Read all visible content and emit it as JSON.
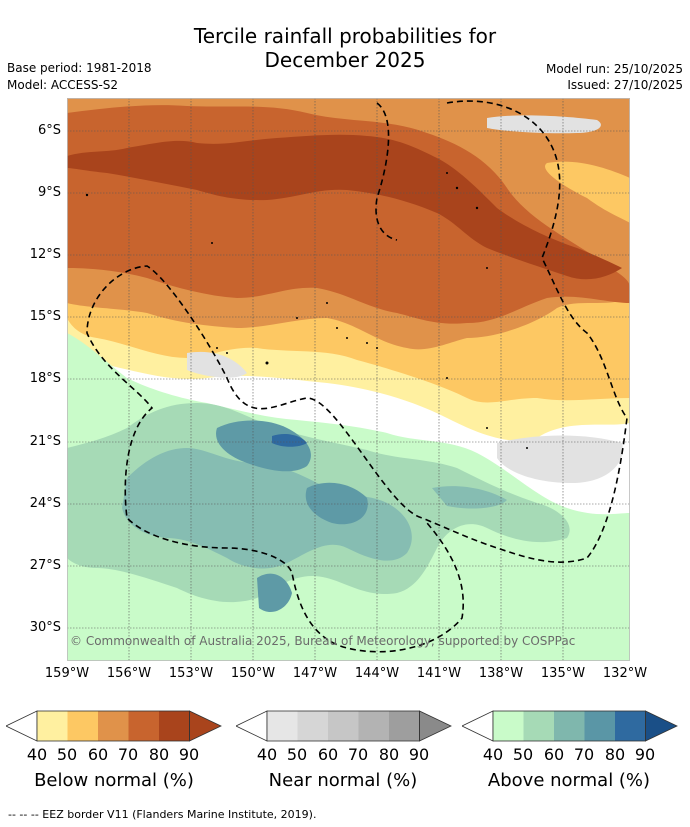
{
  "title_line1": "Tercile rainfall probabilities for",
  "title_line2": "December 2025",
  "base_period": "Base period: 1981-2018",
  "model": "Model: ACCESS-S2",
  "model_run": "Model run: 25/10/2025",
  "issued": "Issued: 27/10/2025",
  "copyright": "© Commonwealth of Australia 2025, Bureau of Meteorology, supported by COSPPac",
  "footer": "--  --  -- EEZ border V11 (Flanders Marine Institute, 2019).",
  "lat_labels": [
    "6°S",
    "9°S",
    "12°S",
    "15°S",
    "18°S",
    "21°S",
    "24°S",
    "27°S",
    "30°S"
  ],
  "lon_labels": [
    "159°W",
    "156°W",
    "153°W",
    "150°W",
    "147°W",
    "144°W",
    "141°W",
    "138°W",
    "135°W",
    "132°W"
  ],
  "colorbars": [
    {
      "title": "Below normal (%)",
      "ticks": [
        "40",
        "50",
        "60",
        "70",
        "80",
        "90"
      ],
      "colors": [
        "#fff0a0",
        "#fdc863",
        "#e0924a",
        "#c8642e",
        "#a9441c",
        "#a9441c"
      ]
    },
    {
      "title": "Near normal (%)",
      "ticks": [
        "40",
        "50",
        "60",
        "70",
        "80",
        "90"
      ],
      "colors": [
        "#e6e6e6",
        "#d6d6d6",
        "#c6c6c6",
        "#b3b3b3",
        "#9e9e9e",
        "#8a8a8a"
      ]
    },
    {
      "title": "Above normal (%)",
      "ticks": [
        "40",
        "50",
        "60",
        "70",
        "80",
        "90"
      ],
      "colors": [
        "#c9fbc9",
        "#a6dab6",
        "#7fb7ad",
        "#5a96a6",
        "#2f6aa0",
        "#1a4f87"
      ]
    }
  ],
  "colors": {
    "below_40": "#fff0a0",
    "below_50": "#fdc863",
    "below_60": "#e0924a",
    "below_70": "#c8642e",
    "below_80": "#a9441c",
    "near_40": "#e2e2e2",
    "above_40": "#c9fbc9",
    "above_50": "#a6dab6",
    "above_60": "#86bdb2",
    "above_70": "#5e9aa6",
    "above_80": "#2f6aa0"
  }
}
